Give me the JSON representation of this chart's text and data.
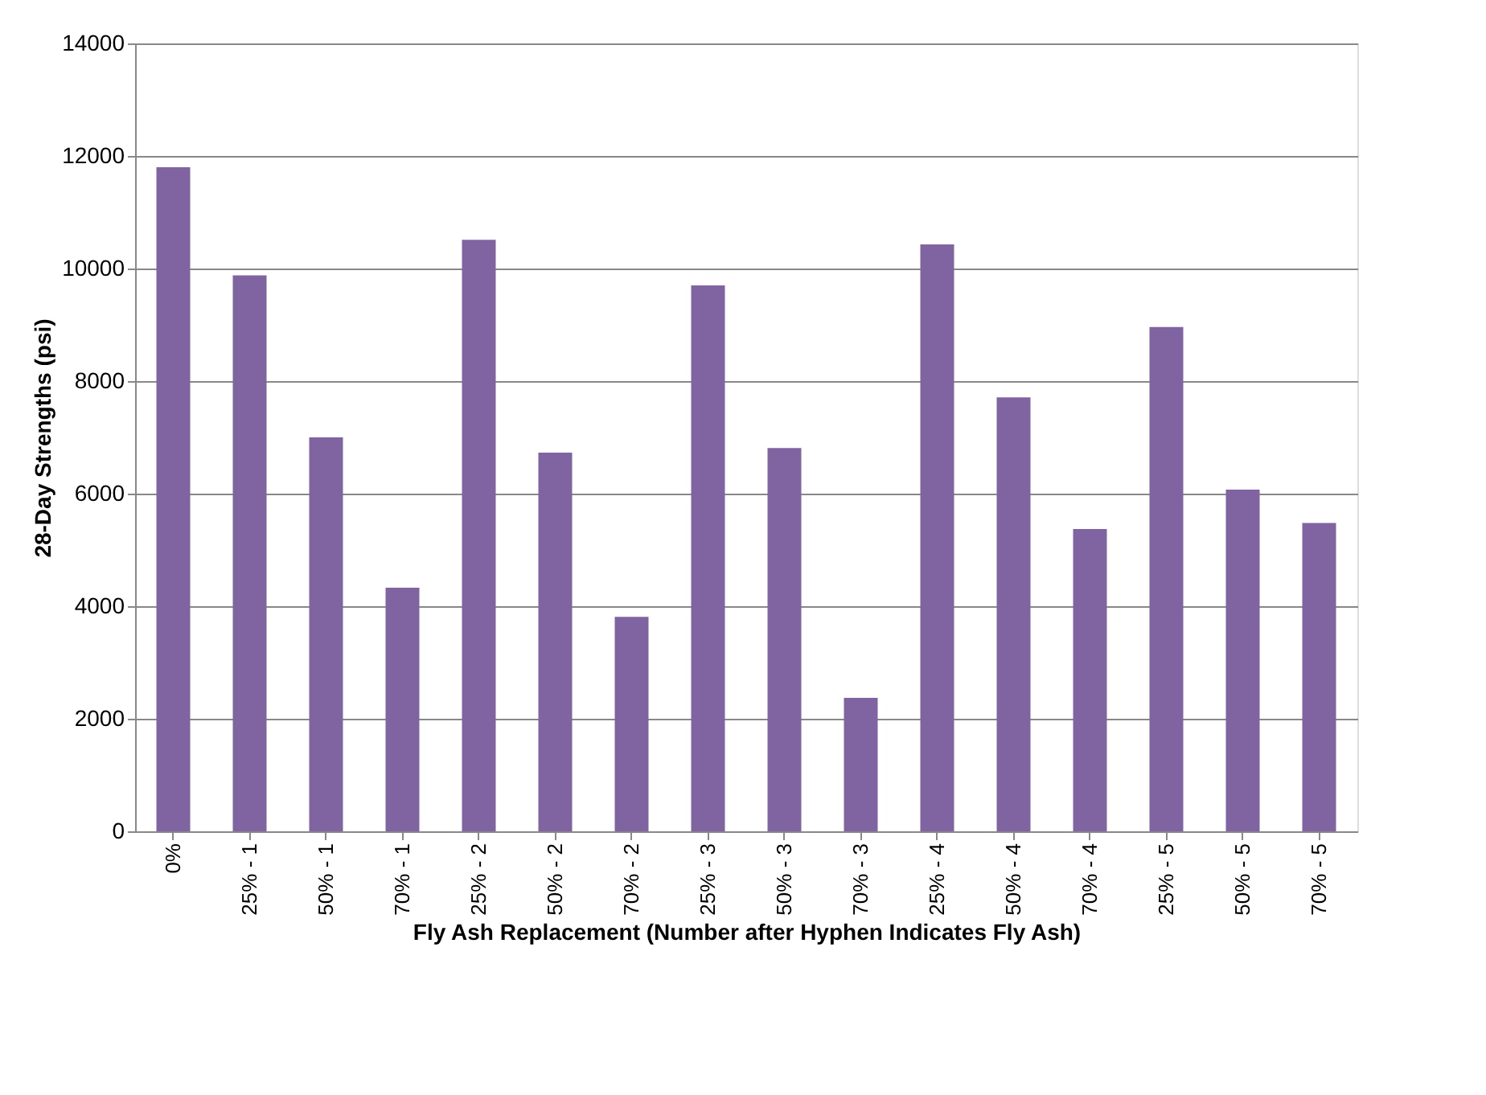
{
  "chart_data": {
    "type": "bar",
    "xlabel": "Fly Ash Replacement (Number after Hyphen Indicates Fly Ash)",
    "ylabel": "28-Day Strengths (psi)",
    "categories": [
      "0%",
      "25% - 1",
      "50% - 1",
      "70% - 1",
      "25% - 2",
      "50% - 2",
      "70% - 2",
      "25% - 3",
      "50% - 3",
      "70% - 3",
      "25% - 4",
      "50% - 4",
      "70% - 4",
      "25% - 5",
      "50% - 5",
      "70% - 5"
    ],
    "values": [
      11800,
      9880,
      7000,
      4330,
      10510,
      6730,
      3810,
      9700,
      6810,
      2370,
      10430,
      7710,
      5370,
      8960,
      6070,
      5480
    ],
    "color": "#8064a2",
    "ylim": [
      0,
      14000
    ],
    "yticks": [
      0,
      2000,
      4000,
      6000,
      8000,
      10000,
      12000,
      14000
    ],
    "grid": "y"
  }
}
